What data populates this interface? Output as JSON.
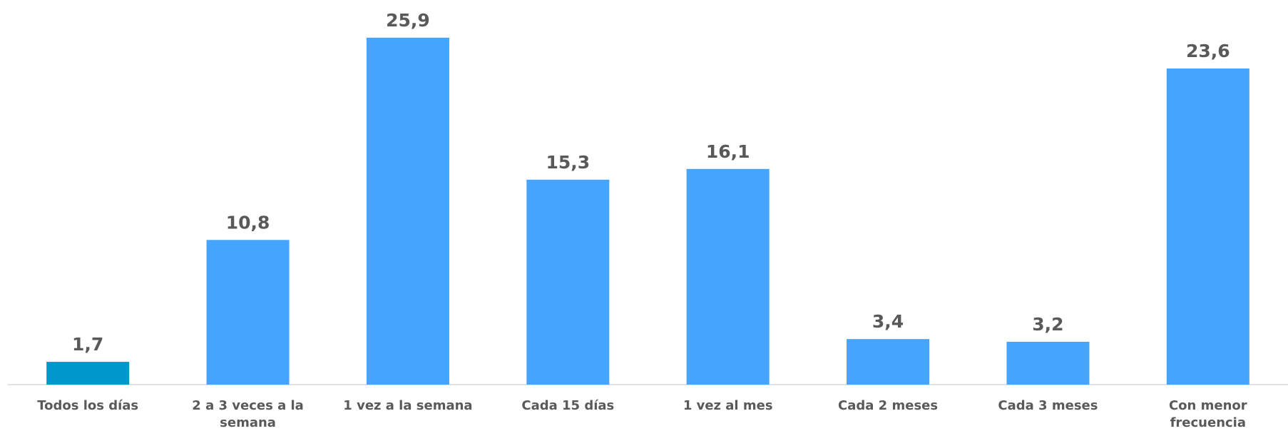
{
  "chart_data": {
    "type": "bar",
    "categories": [
      "Todos los días",
      "2 a 3 veces a la semana",
      "1 vez a la semana",
      "Cada 15 días",
      "1 vez al mes",
      "Cada 2 meses",
      "Cada 3 meses",
      "Con menor frecuencia"
    ],
    "values": [
      1.7,
      10.8,
      25.9,
      15.3,
      16.1,
      3.4,
      3.2,
      23.6
    ],
    "value_labels": [
      "1,7",
      "10,8",
      "25,9",
      "15,3",
      "16,1",
      "3,4",
      "3,2",
      "23,6"
    ],
    "colors": [
      "#0097cc",
      "#45a4fd",
      "#45a4fd",
      "#45a4fd",
      "#45a4fd",
      "#45a4fd",
      "#45a4fd",
      "#45a4fd"
    ],
    "ylim": [
      0,
      28.5
    ],
    "grid": false
  }
}
